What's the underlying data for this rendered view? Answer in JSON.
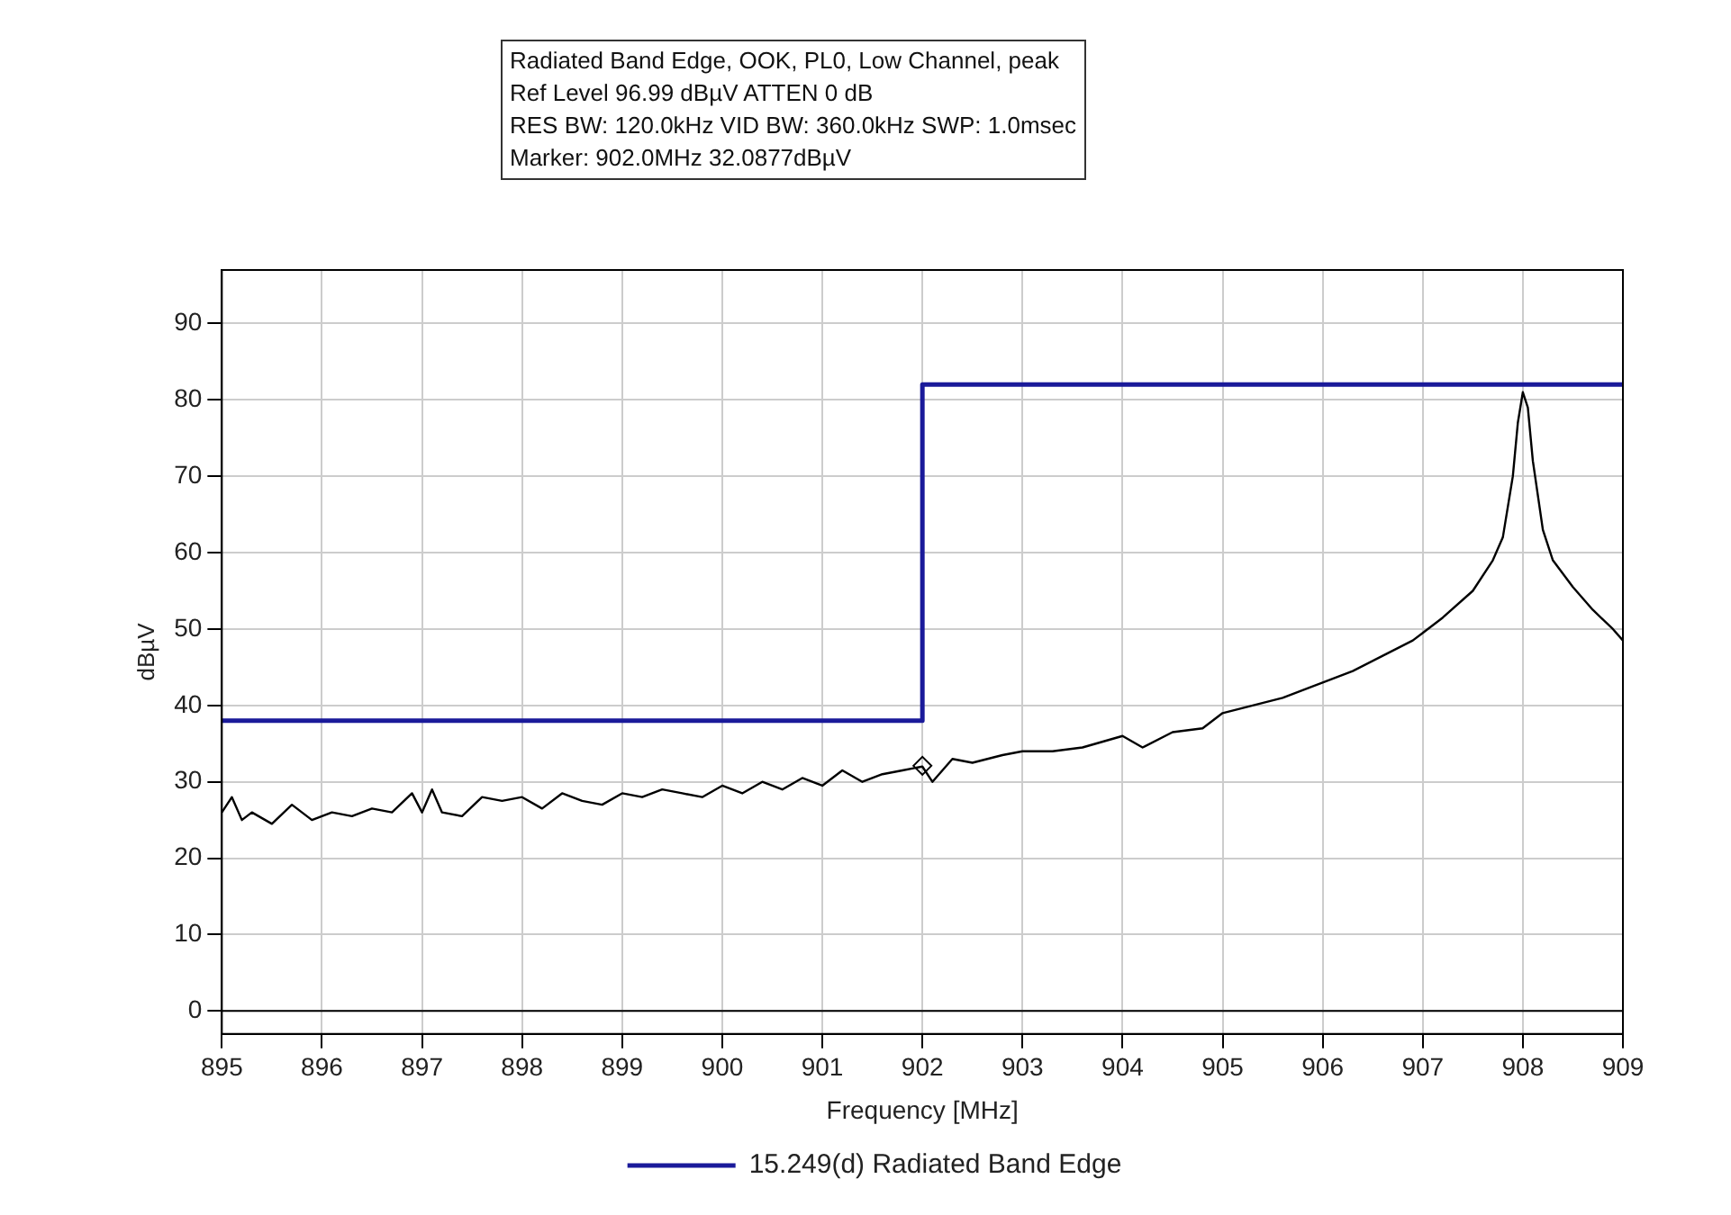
{
  "chart_data": {
    "type": "line",
    "title": "Radiated Band Edge, OOK, PL0, Low Channel, peak",
    "annotations": [
      "Ref Level 96.99 dBµV    ATTEN 0 dB",
      "RES BW: 120.0kHz  VID BW: 360.0kHz  SWP: 1.0msec",
      "Marker: 902.0MHz  32.0877dBµV"
    ],
    "xlabel": "Frequency [MHz]",
    "ylabel": "dBµV",
    "xlim": [
      895,
      909
    ],
    "xticks": [
      895,
      896,
      897,
      898,
      899,
      900,
      901,
      902,
      903,
      904,
      905,
      906,
      907,
      908,
      909
    ],
    "ylim": [
      -3,
      97
    ],
    "yticks": [
      0,
      10,
      20,
      30,
      40,
      50,
      60,
      70,
      80,
      90
    ],
    "grid": true,
    "legend": "bottom",
    "marker": "none",
    "line_style": "solid",
    "series": [
      {
        "type": "line",
        "color": "#000000",
        "x": [
          895,
          895.1,
          895.2,
          895.3,
          895.5,
          895.7,
          895.9,
          896.1,
          896.3,
          896.5,
          896.7,
          896.9,
          897,
          897.1,
          897.2,
          897.4,
          897.6,
          897.8,
          898,
          898.2,
          898.4,
          898.6,
          898.8,
          899,
          899.2,
          899.4,
          899.6,
          899.8,
          900,
          900.2,
          900.4,
          900.6,
          900.8,
          901,
          901.2,
          901.4,
          901.6,
          901.8,
          902,
          902.1,
          902.3,
          902.5,
          902.8,
          903,
          903.3,
          903.6,
          904,
          904.2,
          904.5,
          904.8,
          905,
          905.3,
          905.6,
          906,
          906.3,
          906.6,
          906.9,
          907,
          907.2,
          907.5,
          907.7,
          907.8,
          907.9,
          907.95,
          908,
          908.05,
          908.1,
          908.2,
          908.3,
          908.5,
          908.7,
          908.9,
          909
        ],
        "values": [
          26,
          28,
          25,
          26,
          24.5,
          27,
          25,
          26,
          25.5,
          26.5,
          26,
          28.5,
          26,
          29,
          26,
          25.5,
          28,
          27.5,
          28,
          26.5,
          28.5,
          27.5,
          27,
          28.5,
          28,
          29,
          28.5,
          28,
          29.5,
          28.5,
          30,
          29,
          30.5,
          29.5,
          31.5,
          30,
          31,
          31.5,
          32,
          30,
          33,
          32.5,
          33.5,
          34,
          34,
          34.5,
          36,
          34.5,
          36.5,
          37,
          39,
          40,
          41,
          43,
          44.5,
          46.5,
          48.5,
          49.5,
          51.5,
          55,
          59,
          62,
          70,
          77,
          81,
          79,
          72,
          63,
          59,
          55.5,
          52.5,
          50,
          48.5
        ]
      },
      {
        "type": "step",
        "name": "15.249(d) Radiated Band Edge",
        "color": "#1a1a9a",
        "x": [
          895,
          902,
          909
        ],
        "values": [
          38,
          82,
          82
        ]
      },
      {
        "type": "scatter",
        "color": "#000000",
        "marker": "diamond",
        "x": [
          902
        ],
        "values": [
          32.1
        ]
      }
    ]
  }
}
